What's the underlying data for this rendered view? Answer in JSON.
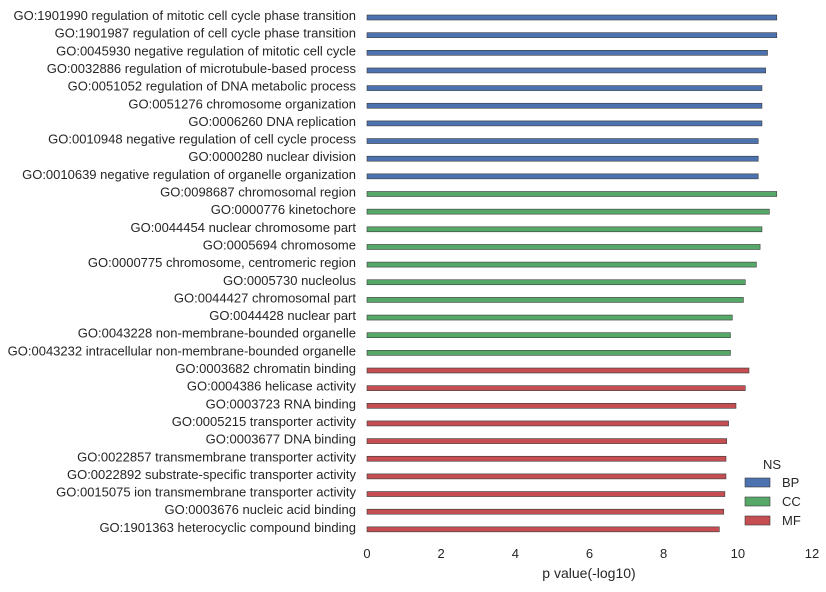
{
  "chart_data": {
    "type": "bar",
    "orientation": "horizontal",
    "xlabel": "p value(-log10)",
    "ylabel": "",
    "title": "",
    "xlim": [
      0,
      12
    ],
    "xticks": [
      0,
      2,
      4,
      6,
      8,
      10,
      12
    ],
    "grid": false,
    "legend": {
      "title": "NS",
      "placement": "bottom-right",
      "entries": [
        {
          "name": "BP",
          "color": "#4C72B0"
        },
        {
          "name": "CC",
          "color": "#55A868"
        },
        {
          "name": "MF",
          "color": "#C44E52"
        }
      ]
    },
    "categories": [
      "GO:1901990 regulation of mitotic cell cycle phase transition",
      "GO:1901987 regulation of cell cycle phase transition",
      "GO:0045930 negative regulation of mitotic cell cycle",
      "GO:0032886 regulation of microtubule-based process",
      "GO:0051052 regulation of DNA metabolic process",
      "GO:0051276 chromosome organization",
      "GO:0006260 DNA replication",
      "GO:0010948 negative regulation of cell cycle process",
      "GO:0000280 nuclear division",
      "GO:0010639 negative regulation of organelle organization",
      "GO:0098687 chromosomal region",
      "GO:0000776 kinetochore",
      "GO:0044454 nuclear chromosome part",
      "GO:0005694 chromosome",
      "GO:0000775 chromosome, centromeric region",
      "GO:0005730 nucleolus",
      "GO:0044427 chromosomal part",
      "GO:0044428 nuclear part",
      "GO:0043228 non-membrane-bounded organelle",
      "GO:0043232 intracellular non-membrane-bounded organelle",
      "GO:0003682 chromatin binding",
      "GO:0004386 helicase activity",
      "GO:0003723 RNA binding",
      "GO:0005215 transporter activity",
      "GO:0003677 DNA binding",
      "GO:0022857 transmembrane transporter activity",
      "GO:0022892 substrate-specific transporter activity",
      "GO:0015075 ion transmembrane transporter activity",
      "GO:0003676 nucleic acid binding",
      "GO:1901363 heterocyclic compound binding"
    ],
    "groups": [
      "BP",
      "BP",
      "BP",
      "BP",
      "BP",
      "BP",
      "BP",
      "BP",
      "BP",
      "BP",
      "CC",
      "CC",
      "CC",
      "CC",
      "CC",
      "CC",
      "CC",
      "CC",
      "CC",
      "CC",
      "MF",
      "MF",
      "MF",
      "MF",
      "MF",
      "MF",
      "MF",
      "MF",
      "MF",
      "MF"
    ],
    "values": [
      11.05,
      11.05,
      10.8,
      10.75,
      10.65,
      10.65,
      10.65,
      10.55,
      10.55,
      10.55,
      11.05,
      10.85,
      10.65,
      10.6,
      10.5,
      10.2,
      10.15,
      9.85,
      9.8,
      9.8,
      10.3,
      10.2,
      9.95,
      9.75,
      9.7,
      9.68,
      9.68,
      9.65,
      9.62,
      9.5
    ]
  }
}
